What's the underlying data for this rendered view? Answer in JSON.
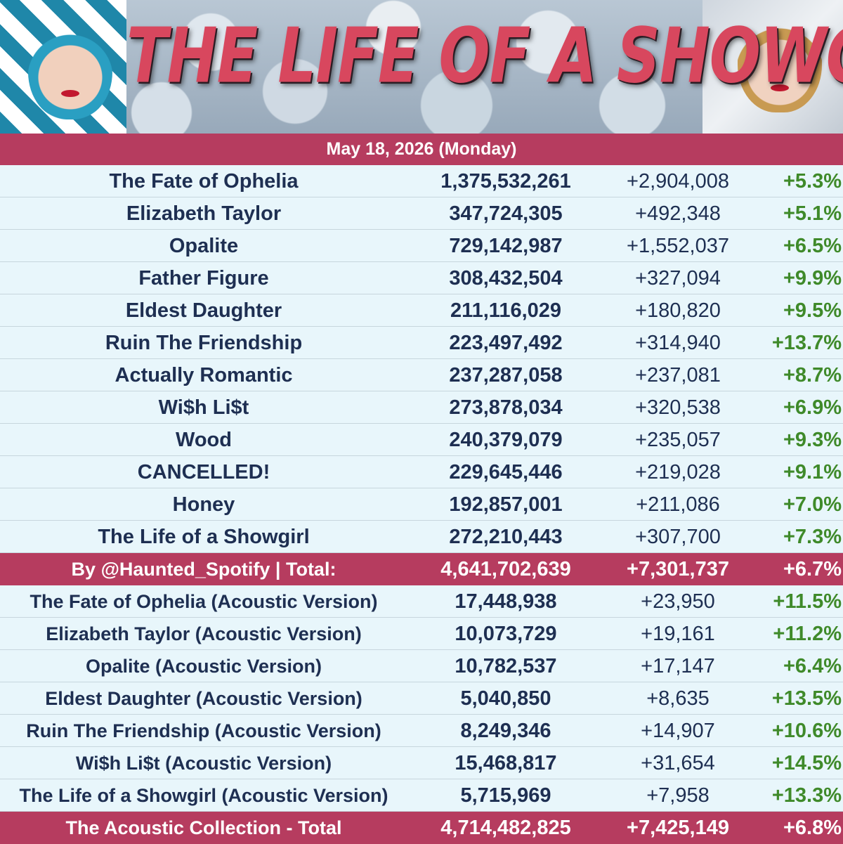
{
  "banner": {
    "title": "THE LIFE OF A SHOWGIRL"
  },
  "date": "May 18, 2026 (Monday)",
  "album_tracks": [
    {
      "name": "The Fate of Ophelia",
      "total": "1,375,532,261",
      "delta": "+2,904,008",
      "pct": "+5.3%"
    },
    {
      "name": "Elizabeth Taylor",
      "total": "347,724,305",
      "delta": "+492,348",
      "pct": "+5.1%"
    },
    {
      "name": "Opalite",
      "total": "729,142,987",
      "delta": "+1,552,037",
      "pct": "+6.5%"
    },
    {
      "name": "Father Figure",
      "total": "308,432,504",
      "delta": "+327,094",
      "pct": "+9.9%"
    },
    {
      "name": "Eldest Daughter",
      "total": "211,116,029",
      "delta": "+180,820",
      "pct": "+9.5%"
    },
    {
      "name": "Ruin The Friendship",
      "total": "223,497,492",
      "delta": "+314,940",
      "pct": "+13.7%"
    },
    {
      "name": "Actually Romantic",
      "total": "237,287,058",
      "delta": "+237,081",
      "pct": "+8.7%"
    },
    {
      "name": "Wi$h Li$t",
      "total": "273,878,034",
      "delta": "+320,538",
      "pct": "+6.9%"
    },
    {
      "name": "Wood",
      "total": "240,379,079",
      "delta": "+235,057",
      "pct": "+9.3%"
    },
    {
      "name": "CANCELLED!",
      "total": "229,645,446",
      "delta": "+219,028",
      "pct": "+9.1%"
    },
    {
      "name": "Honey",
      "total": "192,857,001",
      "delta": "+211,086",
      "pct": "+7.0%"
    },
    {
      "name": "The Life of a Showgirl",
      "total": "272,210,443",
      "delta": "+307,700",
      "pct": "+7.3%"
    }
  ],
  "album_total": {
    "label": "By @Haunted_Spotify | Total:",
    "total": "4,641,702,639",
    "delta": "+7,301,737",
    "pct": "+6.7%"
  },
  "acoustic_tracks": [
    {
      "name": "The Fate of Ophelia (Acoustic Version)",
      "total": "17,448,938",
      "delta": "+23,950",
      "pct": "+11.5%"
    },
    {
      "name": "Elizabeth Taylor (Acoustic Version)",
      "total": "10,073,729",
      "delta": "+19,161",
      "pct": "+11.2%"
    },
    {
      "name": "Opalite (Acoustic Version)",
      "total": "10,782,537",
      "delta": "+17,147",
      "pct": "+6.4%"
    },
    {
      "name": "Eldest Daughter (Acoustic Version)",
      "total": "5,040,850",
      "delta": "+8,635",
      "pct": "+13.5%"
    },
    {
      "name": "Ruin The Friendship (Acoustic Version)",
      "total": "8,249,346",
      "delta": "+14,907",
      "pct": "+10.6%"
    },
    {
      "name": "Wi$h Li$t (Acoustic Version)",
      "total": "15,468,817",
      "delta": "+31,654",
      "pct": "+14.5%"
    },
    {
      "name": "The Life of a Showgirl (Acoustic Version)",
      "total": "5,715,969",
      "delta": "+7,958",
      "pct": "+13.3%"
    }
  ],
  "acoustic_total": {
    "label": "The Acoustic Collection - Total",
    "total": "4,714,482,825",
    "delta": "+7,425,149",
    "pct": "+6.8%"
  },
  "colors": {
    "header_bar": "#b63c5f",
    "row_background": "#e8f6fb",
    "text": "#1e2f52",
    "percent_green": "#3f8a2a"
  }
}
